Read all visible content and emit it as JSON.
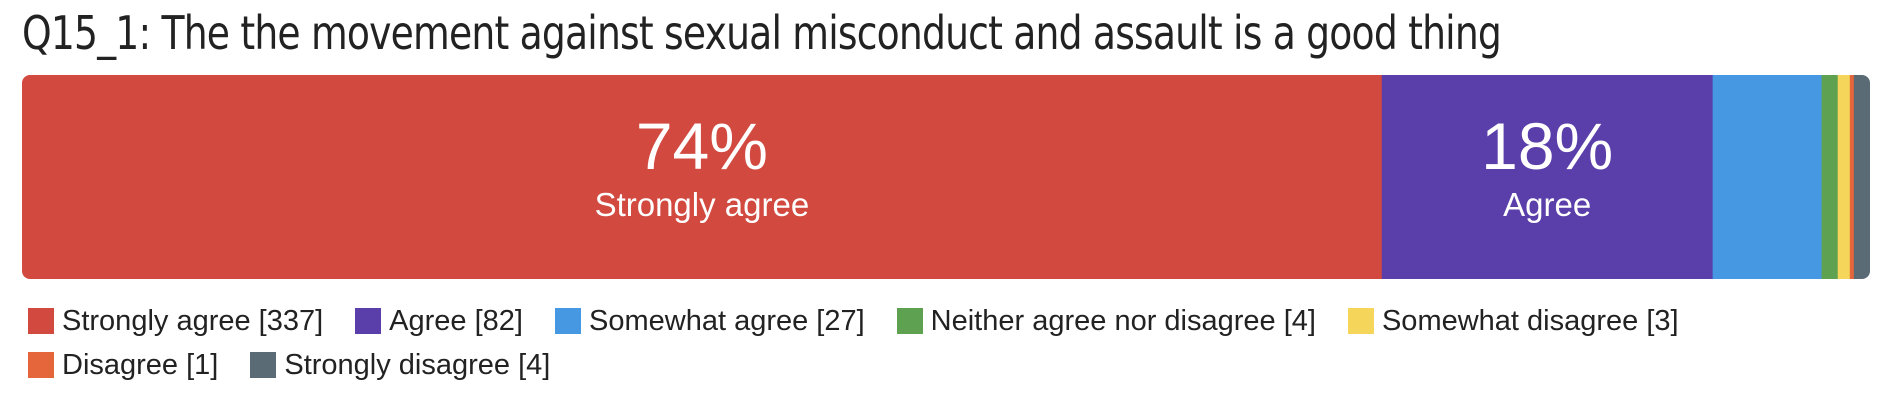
{
  "chart_data": {
    "type": "bar",
    "orientation": "horizontal-stacked-100",
    "title": "Q15_1: The the movement against sexual misconduct and assault is a good thing",
    "legend_position": "bottom",
    "grid": false,
    "categories": [
      "Q15_1"
    ],
    "series": [
      {
        "name": "Strongly agree",
        "count": 337,
        "legend_label": "Strongly agree [337]",
        "percent": 74,
        "data_label": "74%",
        "color": "#d2493f"
      },
      {
        "name": "Agree",
        "count": 82,
        "legend_label": "Agree [82]",
        "percent": 18,
        "data_label": "18%",
        "color": "#5a3ea9"
      },
      {
        "name": "Somewhat agree",
        "count": 27,
        "legend_label": "Somewhat agree [27]",
        "color": "#4698e3"
      },
      {
        "name": "Neither agree nor disagree",
        "count": 4,
        "legend_label": "Neither agree nor disagree [4]",
        "color": "#5ea150"
      },
      {
        "name": "Somewhat disagree",
        "count": 3,
        "legend_label": "Somewhat disagree [3]",
        "color": "#f5d65a"
      },
      {
        "name": "Disagree",
        "count": 1,
        "legend_label": "Disagree [1]",
        "color": "#e4663a"
      },
      {
        "name": "Strongly disagree",
        "count": 4,
        "legend_label": "Strongly disagree [4]",
        "color": "#5a6b76"
      }
    ]
  }
}
